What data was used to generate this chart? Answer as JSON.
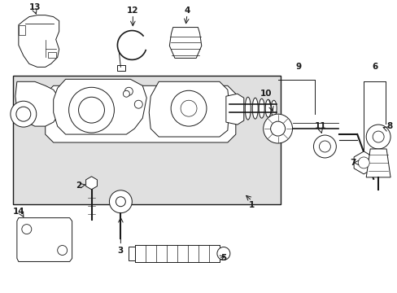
{
  "bg_color": "#ffffff",
  "line_color": "#1a1a1a",
  "gray_fill": "#e0e0e0",
  "fig_width": 4.89,
  "fig_height": 3.6,
  "dpi": 100
}
